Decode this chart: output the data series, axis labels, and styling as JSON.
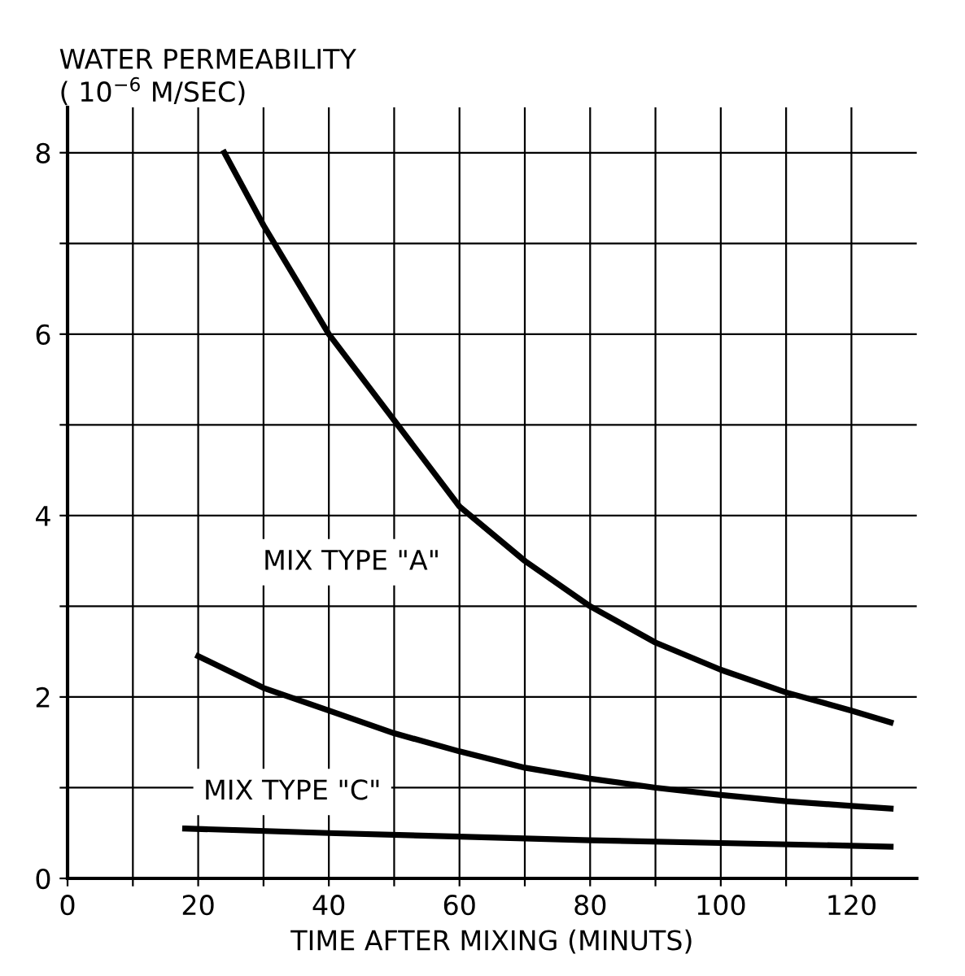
{
  "chart_data": {
    "type": "line",
    "xlabel": "TIME AFTER MIXING (MINUTS)",
    "ylabel": "WATER PERMEABILITY\n( 10$^{−6}$ M/SEC)",
    "xlim": [
      0,
      130
    ],
    "ylim": [
      0,
      8.5
    ],
    "xticks": [
      0,
      {
        "value": 10,
        "label": null
      },
      20,
      {
        "value": 30,
        "label": null
      },
      40,
      {
        "value": 50,
        "label": null
      },
      60,
      {
        "value": 70,
        "label": null
      },
      80,
      {
        "value": 90,
        "label": null
      },
      100,
      {
        "value": 110,
        "label": null
      },
      120
    ],
    "yticks": [
      0,
      {
        "value": 1,
        "label": null
      },
      2,
      {
        "value": 3,
        "label": null
      },
      4,
      {
        "value": 5,
        "label": null
      },
      6,
      {
        "value": 7,
        "label": null
      },
      8
    ],
    "grid": true,
    "marker": "none",
    "line_style": "solid",
    "series": [
      {
        "color": "#000000",
        "x": [
          24,
          30,
          40,
          50,
          60,
          70,
          80,
          90,
          100,
          110,
          120,
          126
        ],
        "values": [
          8.0,
          7.2,
          6.0,
          5.05,
          4.1,
          3.5,
          3.0,
          2.6,
          2.3,
          2.05,
          1.85,
          1.72
        ]
      },
      {
        "color": "#000000",
        "x": [
          20,
          30,
          40,
          50,
          60,
          70,
          80,
          90,
          100,
          110,
          120,
          126
        ],
        "values": [
          2.45,
          2.1,
          1.85,
          1.6,
          1.4,
          1.22,
          1.1,
          1.0,
          0.92,
          0.85,
          0.8,
          0.77
        ]
      },
      {
        "color": "#000000",
        "x": [
          18,
          40,
          60,
          80,
          100,
          120,
          126
        ],
        "values": [
          0.55,
          0.5,
          0.46,
          0.42,
          0.39,
          0.36,
          0.35
        ]
      }
    ],
    "annotations": [
      "MIX TYPE \"A\"",
      "MIX TYPE \"C\""
    ]
  }
}
